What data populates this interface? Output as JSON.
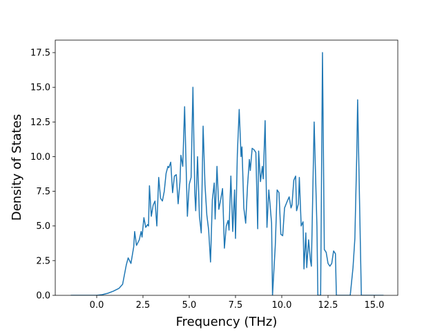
{
  "chart_data": {
    "type": "line",
    "xlabel": "Frequency (THz)",
    "ylabel": "Density of States",
    "x": [
      -1.4,
      -0.5,
      0,
      0.3,
      0.6,
      0.9,
      1.2,
      1.4,
      1.5,
      1.6,
      1.7,
      1.85,
      2.0,
      2.05,
      2.15,
      2.3,
      2.4,
      2.45,
      2.55,
      2.65,
      2.75,
      2.8,
      2.85,
      2.95,
      3.05,
      3.15,
      3.25,
      3.35,
      3.45,
      3.55,
      3.65,
      3.75,
      3.85,
      3.9,
      4.0,
      4.1,
      4.2,
      4.3,
      4.4,
      4.5,
      4.55,
      4.65,
      4.75,
      4.9,
      5.0,
      5.1,
      5.2,
      5.3,
      5.35,
      5.45,
      5.55,
      5.65,
      5.75,
      5.85,
      5.95,
      6.05,
      6.15,
      6.25,
      6.35,
      6.4,
      6.5,
      6.6,
      6.7,
      6.8,
      6.9,
      7.0,
      7.1,
      7.15,
      7.25,
      7.35,
      7.45,
      7.5,
      7.6,
      7.7,
      7.8,
      7.85,
      7.95,
      8.05,
      8.15,
      8.25,
      8.3,
      8.4,
      8.5,
      8.6,
      8.7,
      8.75,
      8.85,
      8.95,
      9.0,
      9.1,
      9.2,
      9.3,
      9.45,
      9.5,
      9.65,
      9.75,
      9.85,
      9.95,
      10.05,
      10.15,
      10.3,
      10.4,
      10.5,
      10.55,
      10.65,
      10.75,
      10.8,
      10.9,
      10.95,
      11.05,
      11.15,
      11.2,
      11.3,
      11.35,
      11.45,
      11.55,
      11.6,
      11.75,
      11.9,
      11.95,
      12.1,
      12.2,
      12.3,
      12.4,
      12.5,
      12.6,
      12.7,
      12.8,
      12.9,
      12.95,
      13.0,
      13.7,
      13.85,
      13.95,
      14.05,
      14.1,
      14.2,
      14.3,
      14.5,
      15.5
    ],
    "series": [
      {
        "color": "#1f77b4",
        "values": [
          0,
          0,
          0,
          0.05,
          0.15,
          0.3,
          0.5,
          0.8,
          1.5,
          2.2,
          2.7,
          2.3,
          3.5,
          4.6,
          3.6,
          4.0,
          4.6,
          4.2,
          5.6,
          4.9,
          5.1,
          5.0,
          7.9,
          5.7,
          6.5,
          6.8,
          5.0,
          8.5,
          7.0,
          6.8,
          7.5,
          8.8,
          9.3,
          9.2,
          9.6,
          7.4,
          8.6,
          8.7,
          6.6,
          8.2,
          10.1,
          9.3,
          13.6,
          5.7,
          8.0,
          8.5,
          15.0,
          7.4,
          6.1,
          10.0,
          5.7,
          4.5,
          12.2,
          8.0,
          5.8,
          4.7,
          2.4,
          6.9,
          8.1,
          5.5,
          9.3,
          6.2,
          6.9,
          7.7,
          3.4,
          5.0,
          5.4,
          4.7,
          8.6,
          4.6,
          7.6,
          4.1,
          10.2,
          13.4,
          10.0,
          10.7,
          6.3,
          5.2,
          7.9,
          9.8,
          9.0,
          10.6,
          10.5,
          10.3,
          4.8,
          10.4,
          8.2,
          9.3,
          8.4,
          12.6,
          4.9,
          7.6,
          5.2,
          0,
          3.6,
          7.6,
          7.4,
          4.4,
          4.3,
          6.3,
          6.8,
          7.1,
          6.3,
          6.5,
          8.3,
          8.6,
          6.1,
          6.6,
          8.5,
          5.0,
          5.3,
          1.9,
          4.5,
          2.0,
          4.0,
          2.5,
          2.1,
          12.5,
          5.0,
          0,
          0,
          17.5,
          3.3,
          3.1,
          2.3,
          2.1,
          2.3,
          3.2,
          3.0,
          0,
          0,
          0,
          2.0,
          4.1,
          10.0,
          14.1,
          7.0,
          0,
          0,
          0
        ]
      }
    ],
    "xlim": [
      -2.24,
      16.27
    ],
    "ylim": [
      0,
      18.4
    ],
    "xticks": [
      {
        "value": 0,
        "label": "0.0"
      },
      2.5,
      {
        "value": 5,
        "label": "5.0"
      },
      7.5,
      {
        "value": 10,
        "label": "10.0"
      },
      12.5,
      {
        "value": 15,
        "label": "15.0"
      }
    ],
    "yticks": [
      {
        "value": 0,
        "label": "0.0"
      },
      2.5,
      {
        "value": 5,
        "label": "5.0"
      },
      7.5,
      {
        "value": 10,
        "label": "10.0"
      },
      12.5,
      {
        "value": 15,
        "label": "15.0"
      },
      17.5
    ]
  }
}
